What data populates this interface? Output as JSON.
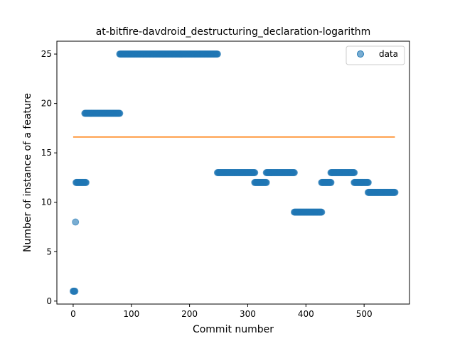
{
  "chart_data": {
    "type": "scatter",
    "title": "at-bitfire-davdroid_destructuring_declaration-logarithm",
    "xlabel": "Commit number",
    "ylabel": "Number of instance of a feature",
    "xlim": [
      -28,
      578
    ],
    "ylim": [
      -0.3,
      26.3
    ],
    "xticks": [
      0,
      100,
      200,
      300,
      400,
      500
    ],
    "yticks": [
      0,
      5,
      10,
      15,
      20,
      25
    ],
    "legend": {
      "position": "top-right",
      "label": "data"
    },
    "colors": {
      "data": "#1f77b4",
      "fit": "#ff7f0e"
    },
    "series": [
      {
        "name": "data",
        "segments": [
          {
            "x_start": 0,
            "x_end": 3,
            "y": 1
          },
          {
            "x_start": 4,
            "x_end": 4,
            "y": 8
          },
          {
            "x_start": 5,
            "x_end": 22,
            "y": 12
          },
          {
            "x_start": 20,
            "x_end": 80,
            "y": 19
          },
          {
            "x_start": 80,
            "x_end": 248,
            "y": 25
          },
          {
            "x_start": 248,
            "x_end": 312,
            "y": 13
          },
          {
            "x_start": 312,
            "x_end": 332,
            "y": 12
          },
          {
            "x_start": 332,
            "x_end": 380,
            "y": 13
          },
          {
            "x_start": 380,
            "x_end": 427,
            "y": 9
          },
          {
            "x_start": 427,
            "x_end": 443,
            "y": 12
          },
          {
            "x_start": 443,
            "x_end": 483,
            "y": 13
          },
          {
            "x_start": 483,
            "x_end": 507,
            "y": 12
          },
          {
            "x_start": 507,
            "x_end": 553,
            "y": 11
          }
        ]
      },
      {
        "line": {
          "x": [
            0,
            553
          ],
          "y": [
            16.6,
            16.6
          ]
        }
      }
    ]
  }
}
